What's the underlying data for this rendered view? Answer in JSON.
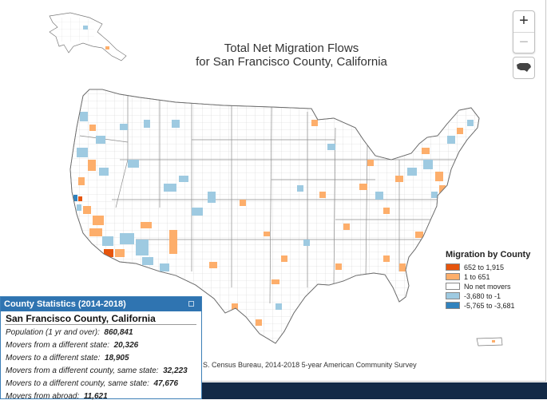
{
  "title": {
    "line1": "Total Net Migration Flows",
    "line2": "for San Francisco County, California"
  },
  "zoom": {
    "in_label": "+",
    "out_label": "−"
  },
  "legend": {
    "title": "Migration by County",
    "items": [
      {
        "label": "652 to 1,915",
        "color": "#e6550d"
      },
      {
        "label": "1 to 651",
        "color": "#fdae6b"
      },
      {
        "label": "No net movers",
        "color": "#ffffff"
      },
      {
        "label": "-3,680 to -1",
        "color": "#9ecae1"
      },
      {
        "label": "-5,765 to -3,681",
        "color": "#3182bd"
      }
    ]
  },
  "source": "S. Census Bureau, 2014-2018 5-year American Community Survey",
  "stats": {
    "header": "County Statistics (2014-2018)",
    "county": "San Francisco County, California",
    "lines": [
      {
        "label": "Population (1 yr and over):",
        "value": "860,841"
      },
      {
        "label": "Movers from a different state:",
        "value": "20,326"
      },
      {
        "label": "Movers to a different state:",
        "value": "18,905"
      },
      {
        "label": "Movers from a different county, same state:",
        "value": "32,223"
      },
      {
        "label": "Movers to a different county, same state:",
        "value": "47,676"
      },
      {
        "label": "Movers from abroad:",
        "value": "11,621"
      }
    ]
  }
}
